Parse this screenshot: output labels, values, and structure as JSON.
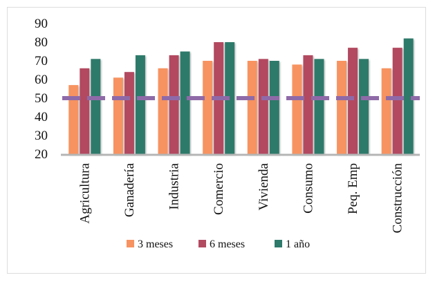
{
  "chart_data": {
    "type": "bar",
    "categories": [
      "Agricultura",
      "Ganadería",
      "Industria",
      "Comercio",
      "Vivienda",
      "Consumo",
      "Peq. Emp",
      "Construcción"
    ],
    "series": [
      {
        "name": "3 meses",
        "color": "#f79361",
        "values": [
          57,
          61,
          66,
          70,
          70,
          68,
          70,
          66
        ]
      },
      {
        "name": "6 meses",
        "color": "#b24a60",
        "values": [
          66,
          64,
          73,
          80,
          71,
          73,
          77,
          77
        ]
      },
      {
        "name": "1 año",
        "color": "#2e7a6b",
        "values": [
          71,
          73,
          75,
          80,
          70,
          71,
          71,
          82
        ]
      }
    ],
    "yticks": [
      "20",
      "30",
      "40",
      "50",
      "60",
      "70",
      "80",
      "90"
    ],
    "ylim": [
      20,
      90
    ],
    "reference_line": {
      "value": 50,
      "color": "#8f6aa8",
      "style": "dashed"
    },
    "legend": {
      "position": "bottom"
    },
    "grid": false
  }
}
